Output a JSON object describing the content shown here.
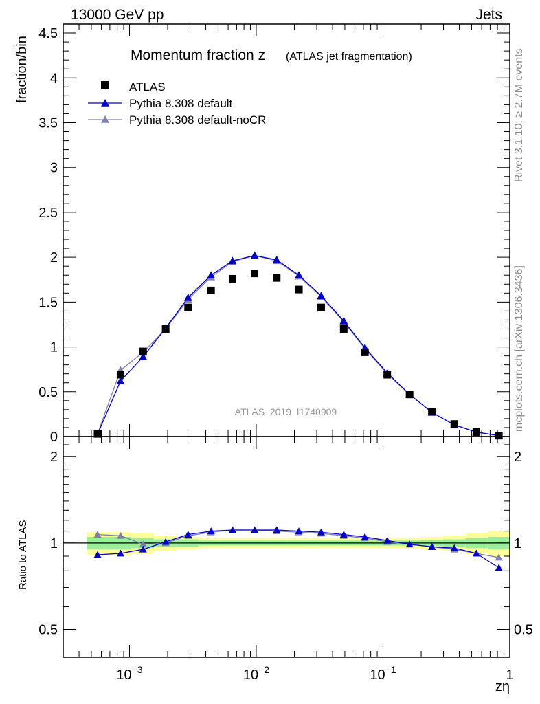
{
  "header": {
    "left": "13000 GeV pp",
    "right": "Jets"
  },
  "side_labels": {
    "rivet": "Rivet 3.1.10, ≥ 2.7M events",
    "mcplots": "mcplots.cern.ch [arXiv:1306.3436]"
  },
  "chart_data": {
    "type": "scatter",
    "title": "Momentum fraction z",
    "subtitle": "(ATLAS jet fragmentation)",
    "watermark": "ATLAS_2019_I1740909",
    "xlabel": "zη",
    "ylabel": "fraction/bin",
    "ratio_ylabel": "Ratio to ATLAS",
    "x_scale": "log",
    "xlim": [
      0.0003,
      1
    ],
    "ylim": [
      0,
      4.6
    ],
    "ratio_ylim": [
      0.4,
      2.35
    ],
    "x_tick_labels": [
      "10",
      "10",
      "10",
      "1"
    ],
    "x_tick_exponents": [
      "−3",
      "−2",
      "−1",
      ""
    ],
    "y_ticks": [
      0,
      0.5,
      1,
      1.5,
      2,
      2.5,
      3,
      3.5,
      4,
      4.5
    ],
    "y_tick_labels": [
      "0",
      "0.5",
      "1",
      "1.5",
      "2",
      "2.5",
      "3",
      "3.5",
      "4",
      "4.5"
    ],
    "ratio_ticks": [
      0.5,
      1,
      2
    ],
    "ratio_tick_labels": [
      "0.5",
      "1",
      "2"
    ],
    "legend_position": "top-left",
    "x": [
      0.00056,
      0.00085,
      0.00128,
      0.00193,
      0.0029,
      0.0044,
      0.0065,
      0.0097,
      0.0145,
      0.0217,
      0.0325,
      0.049,
      0.072,
      0.108,
      0.162,
      0.243,
      0.365,
      0.545,
      0.82
    ],
    "bin_edges": [
      0.00046,
      0.00068,
      0.00103,
      0.00155,
      0.00233,
      0.0035,
      0.0052,
      0.0078,
      0.0117,
      0.0176,
      0.0263,
      0.039,
      0.059,
      0.088,
      0.132,
      0.198,
      0.297,
      0.446,
      0.67,
      1.0
    ],
    "series": [
      {
        "name": "ATLAS",
        "color": "#000000",
        "marker": "square",
        "values": [
          0.03,
          0.69,
          0.95,
          1.2,
          1.44,
          1.63,
          1.76,
          1.82,
          1.77,
          1.64,
          1.44,
          1.2,
          0.94,
          0.69,
          0.47,
          0.28,
          0.14,
          0.05,
          0.01
        ],
        "ratio_stat_half": [
          0.05,
          0.05,
          0.04,
          0.03,
          0.03,
          0.02,
          0.02,
          0.02,
          0.02,
          0.02,
          0.02,
          0.02,
          0.02,
          0.02,
          0.02,
          0.025,
          0.03,
          0.04,
          0.05
        ],
        "ratio_total_half": [
          0.09,
          0.09,
          0.08,
          0.06,
          0.05,
          0.04,
          0.04,
          0.04,
          0.04,
          0.04,
          0.04,
          0.04,
          0.04,
          0.04,
          0.04,
          0.05,
          0.06,
          0.08,
          0.1
        ]
      },
      {
        "name": "Pythia 8.308 default",
        "color": "#0000cc",
        "marker": "triangle",
        "values": [
          0.027,
          0.62,
          0.89,
          1.21,
          1.55,
          1.8,
          1.96,
          2.02,
          1.97,
          1.8,
          1.57,
          1.29,
          0.99,
          0.71,
          0.47,
          0.27,
          0.13,
          0.05,
          0.01
        ],
        "ratio": [
          0.91,
          0.92,
          0.95,
          1.01,
          1.07,
          1.1,
          1.11,
          1.11,
          1.11,
          1.1,
          1.09,
          1.07,
          1.05,
          1.02,
          0.99,
          0.97,
          0.96,
          0.92,
          0.82
        ]
      },
      {
        "name": "Pythia 8.308 default-noCR",
        "color": "#7f7fb2",
        "marker": "triangle",
        "values": [
          0.032,
          0.74,
          0.94,
          1.2,
          1.53,
          1.78,
          1.95,
          2.02,
          1.96,
          1.79,
          1.56,
          1.28,
          0.98,
          0.7,
          0.47,
          0.27,
          0.13,
          0.05,
          0.01
        ],
        "ratio": [
          1.07,
          1.06,
          0.99,
          1.0,
          1.06,
          1.09,
          1.11,
          1.11,
          1.1,
          1.09,
          1.08,
          1.06,
          1.04,
          1.01,
          0.99,
          0.97,
          0.95,
          0.92,
          0.89
        ]
      }
    ]
  }
}
